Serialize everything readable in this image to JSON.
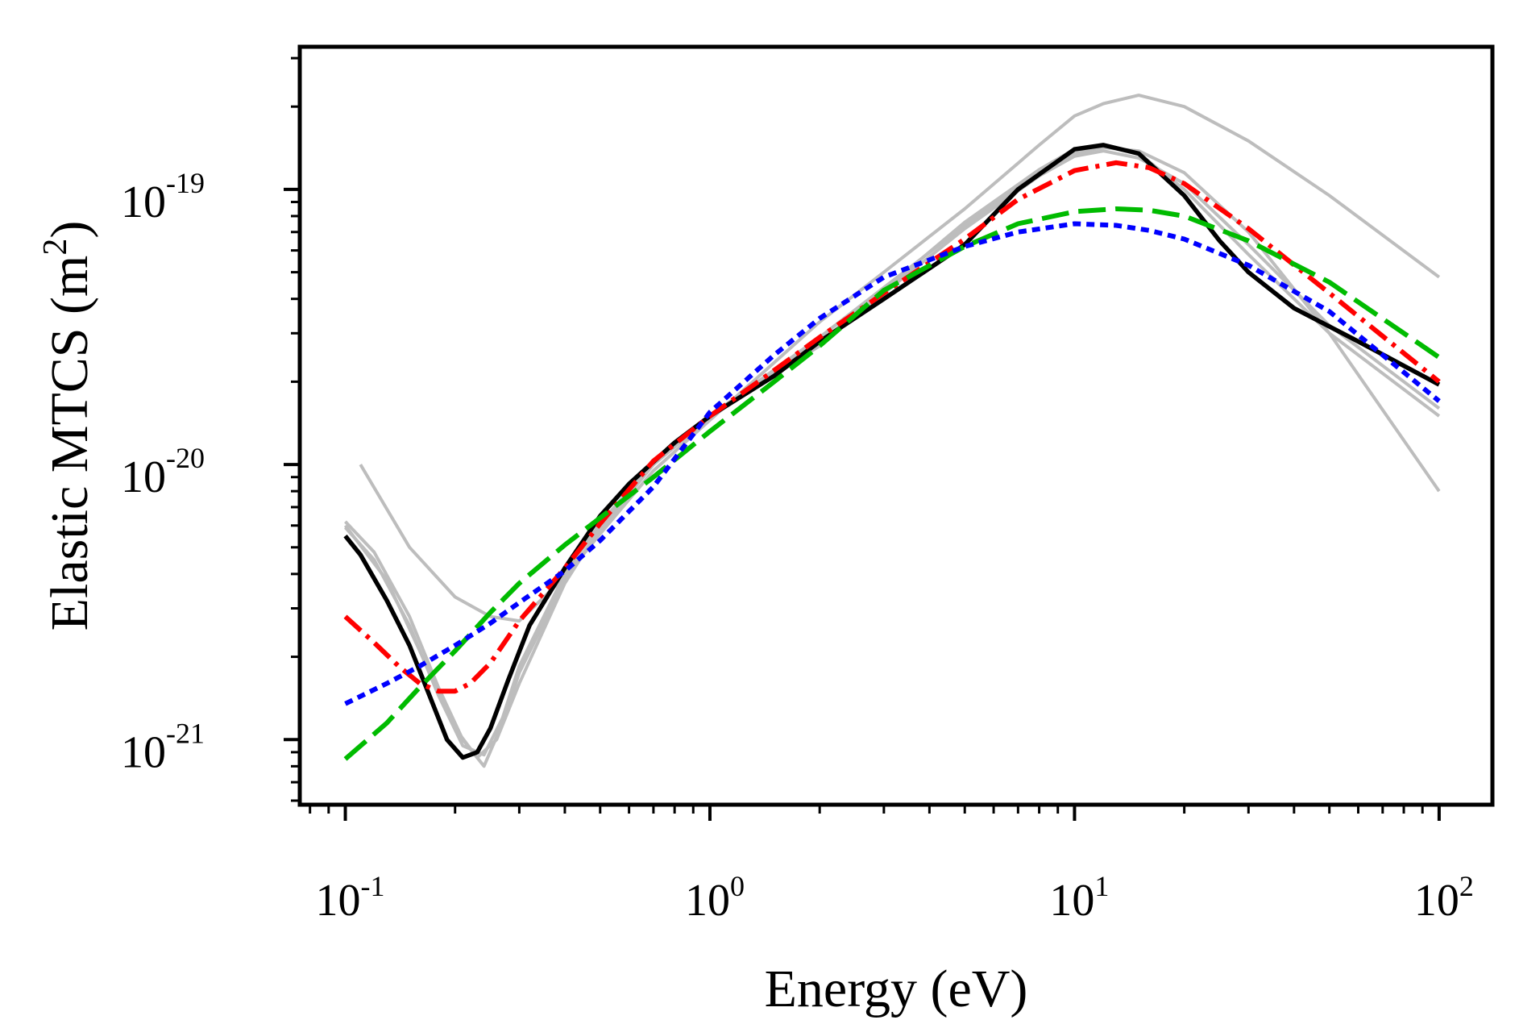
{
  "chart_data": {
    "type": "line",
    "title": "",
    "xlabel": "Energy (eV)",
    "ylabel": {
      "main": "Elastic MTCS (m",
      "sup": "2",
      "close": ")"
    },
    "xscale": "log",
    "yscale": "log",
    "xlim": [
      0.075,
      140
    ],
    "ylim": [
      5.8e-22,
      3.3e-19
    ],
    "grid": false,
    "x_ticks": [
      {
        "value": 0.1,
        "base": "10",
        "exp": "-1"
      },
      {
        "value": 1,
        "base": "10",
        "exp": "0"
      },
      {
        "value": 10,
        "base": "10",
        "exp": "1"
      },
      {
        "value": 100,
        "base": "10",
        "exp": "2"
      }
    ],
    "y_ticks": [
      {
        "value": 1e-21,
        "base": "10",
        "exp": "-21"
      },
      {
        "value": 1e-20,
        "base": "10",
        "exp": "-20"
      },
      {
        "value": 1e-19,
        "base": "10",
        "exp": "-19"
      }
    ],
    "colors": {
      "gray": "#bdbdbd",
      "black": "#000000",
      "red": "#ff0000",
      "green": "#00bb00",
      "blue": "#0000ff"
    },
    "series": [
      {
        "name": "gray-upper",
        "color": "#bdbdbd",
        "style": "solid",
        "x": [
          0.11,
          0.15,
          0.2,
          0.25,
          0.3,
          0.4,
          0.5,
          0.7,
          1,
          2,
          3,
          5,
          8,
          10,
          12,
          15,
          20,
          30,
          50,
          100
        ],
        "y": [
          1e-20,
          5e-21,
          3.3e-21,
          2.8e-21,
          2.7e-21,
          3.9e-21,
          5.6e-21,
          9.5e-21,
          1.45e-20,
          3.3e-20,
          5e-20,
          8.5e-20,
          1.45e-19,
          1.85e-19,
          2.05e-19,
          2.2e-19,
          2e-19,
          1.5e-19,
          9.5e-20,
          4.8e-20
        ]
      },
      {
        "name": "gray-2",
        "color": "#bdbdbd",
        "style": "solid",
        "x": [
          0.1,
          0.12,
          0.15,
          0.18,
          0.21,
          0.24,
          0.27,
          0.3,
          0.4,
          0.5,
          0.7,
          1,
          2,
          3,
          5,
          8,
          10,
          12,
          15,
          20,
          30,
          50,
          100
        ],
        "y": [
          6.2e-21,
          4.8e-21,
          2.8e-21,
          1.55e-21,
          1e-21,
          8e-22,
          1.15e-21,
          1.75e-21,
          3.8e-21,
          5.8e-21,
          1e-20,
          1.48e-20,
          2.8e-20,
          4.2e-20,
          7.2e-20,
          1.12e-19,
          1.32e-19,
          1.38e-19,
          1.3e-19,
          1.05e-19,
          6.3e-20,
          3.2e-20,
          1.6e-20
        ]
      },
      {
        "name": "gray-3",
        "color": "#bdbdbd",
        "style": "solid",
        "x": [
          0.1,
          0.12,
          0.15,
          0.18,
          0.21,
          0.24,
          0.27,
          0.3,
          0.4,
          0.5,
          0.7,
          1,
          2,
          3,
          5,
          8,
          10,
          12,
          15,
          20,
          30,
          50,
          100
        ],
        "y": [
          5.9e-21,
          4.5e-21,
          2.6e-21,
          1.45e-21,
          9.5e-22,
          8.8e-22,
          1.2e-21,
          1.85e-21,
          4e-21,
          6.1e-21,
          1.02e-20,
          1.5e-20,
          2.7e-20,
          4.3e-20,
          7.6e-20,
          1.18e-19,
          1.4e-19,
          1.45e-19,
          1.35e-19,
          1e-19,
          5.8e-20,
          3e-20,
          1.5e-20
        ]
      },
      {
        "name": "gray-steep",
        "color": "#bdbdbd",
        "style": "solid",
        "x": [
          0.1,
          0.13,
          0.16,
          0.2,
          0.23,
          0.26,
          0.3,
          0.4,
          0.5,
          0.7,
          1,
          2,
          3,
          5,
          8,
          10,
          12,
          15,
          20,
          30,
          50,
          100
        ],
        "y": [
          6e-21,
          3.8e-21,
          2.1e-21,
          1.1e-21,
          8.6e-22,
          1e-21,
          1.6e-21,
          3.7e-21,
          5.9e-21,
          1e-20,
          1.5e-20,
          2.9e-20,
          4.4e-20,
          7.4e-20,
          1.15e-19,
          1.35e-19,
          1.42e-19,
          1.38e-19,
          1.15e-19,
          7e-20,
          3e-20,
          8e-21
        ]
      },
      {
        "name": "black",
        "color": "#000000",
        "style": "solid",
        "x": [
          0.1,
          0.11,
          0.13,
          0.15,
          0.17,
          0.19,
          0.21,
          0.23,
          0.25,
          0.28,
          0.32,
          0.4,
          0.5,
          0.6,
          0.8,
          1,
          1.5,
          2,
          3,
          5,
          7,
          10,
          12,
          15,
          20,
          25,
          30,
          40,
          60,
          100
        ],
        "y": [
          5.5e-21,
          4.7e-21,
          3.2e-21,
          2.2e-21,
          1.45e-21,
          1e-21,
          8.6e-22,
          9e-22,
          1.1e-21,
          1.65e-21,
          2.6e-21,
          4.2e-21,
          6.5e-21,
          8.5e-21,
          1.2e-20,
          1.5e-20,
          2.1e-20,
          2.8e-20,
          4e-20,
          6.3e-20,
          1e-19,
          1.4e-19,
          1.45e-19,
          1.35e-19,
          9.5e-20,
          6.5e-20,
          5e-20,
          3.7e-20,
          2.8e-20,
          1.95e-20
        ]
      },
      {
        "name": "red-dashdot",
        "color": "#ff0000",
        "style": "dashdot",
        "x": [
          0.1,
          0.12,
          0.14,
          0.16,
          0.18,
          0.2,
          0.22,
          0.25,
          0.3,
          0.4,
          0.5,
          0.7,
          1,
          1.5,
          2,
          3,
          5,
          7,
          10,
          13,
          16,
          20,
          30,
          50,
          100
        ],
        "y": [
          2.8e-21,
          2.25e-21,
          1.85e-21,
          1.6e-21,
          1.5e-21,
          1.5e-21,
          1.6e-21,
          1.9e-21,
          2.7e-21,
          4.2e-21,
          6.1e-21,
          1.03e-20,
          1.5e-20,
          2.2e-20,
          2.9e-20,
          4.2e-20,
          6.6e-20,
          9.2e-20,
          1.17e-19,
          1.25e-19,
          1.2e-19,
          1.05e-19,
          7.2e-20,
          4.2e-20,
          2e-20
        ]
      },
      {
        "name": "green-dashed",
        "color": "#00bb00",
        "style": "dashed",
        "x": [
          0.1,
          0.13,
          0.16,
          0.2,
          0.25,
          0.3,
          0.4,
          0.5,
          0.7,
          1,
          1.5,
          2,
          3,
          5,
          7,
          10,
          13,
          16,
          20,
          30,
          50,
          100
        ],
        "y": [
          8.5e-22,
          1.15e-21,
          1.55e-21,
          2.1e-21,
          2.9e-21,
          3.7e-21,
          5.1e-21,
          6.4e-21,
          9e-21,
          1.32e-20,
          2e-20,
          2.7e-20,
          4.3e-20,
          6.2e-20,
          7.5e-20,
          8.3e-20,
          8.5e-20,
          8.4e-20,
          8e-20,
          6.5e-20,
          4.6e-20,
          2.45e-20
        ]
      },
      {
        "name": "blue-dotted",
        "color": "#0000ff",
        "style": "dotted",
        "x": [
          0.1,
          0.13,
          0.16,
          0.2,
          0.25,
          0.3,
          0.4,
          0.5,
          0.7,
          1,
          1.5,
          2,
          3,
          5,
          7,
          10,
          13,
          16,
          20,
          30,
          50,
          100
        ],
        "y": [
          1.35e-21,
          1.6e-21,
          1.85e-21,
          2.2e-21,
          2.65e-21,
          3.15e-21,
          4.1e-21,
          5.3e-21,
          8.3e-21,
          1.55e-20,
          2.5e-20,
          3.4e-20,
          4.8e-20,
          6.2e-20,
          7e-20,
          7.5e-20,
          7.4e-20,
          7.1e-20,
          6.6e-20,
          5.3e-20,
          3.6e-20,
          1.7e-20
        ]
      }
    ]
  }
}
